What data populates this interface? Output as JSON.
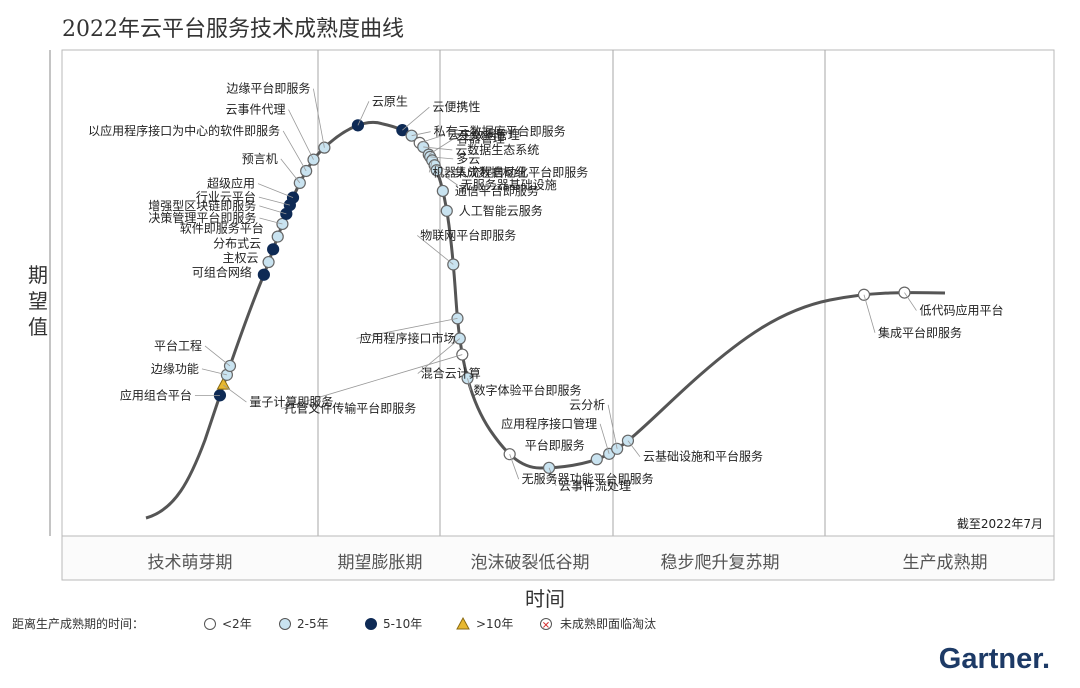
{
  "chart_data": {
    "type": "scatter",
    "title": "2022年云平台服务技术成熟度曲线",
    "ylabel": "期望值",
    "xlabel": "时间",
    "as_of": "截至2022年7月",
    "phases": [
      "技术萌芽期",
      "期望膨胀期",
      "泡沫破裂低谷期",
      "稳步爬升复苏期",
      "生产成熟期"
    ],
    "legend": {
      "title": "距离生产成熟期的时间：",
      "items": [
        {
          "key": "lt2",
          "label": "<2年",
          "color": "#ffffff"
        },
        {
          "key": "2to5",
          "label": "2-5年",
          "color": "#c9e3f0"
        },
        {
          "key": "5to10",
          "label": "5-10年",
          "color": "#0e2a55"
        },
        {
          "key": "gt10",
          "label": ">10年",
          "color": "#e8b830"
        },
        {
          "key": "obsolete",
          "label": "未成熟即面临淘汰",
          "color": "#ffffff"
        }
      ]
    },
    "points": [
      {
        "label": "应用组合平台",
        "t": 0.11,
        "cat": "5to10"
      },
      {
        "label": "量子计算即服务",
        "t": 0.118,
        "cat": "gt10"
      },
      {
        "label": "边缘功能",
        "t": 0.126,
        "cat": "2to5"
      },
      {
        "label": "平台工程",
        "t": 0.133,
        "cat": "2to5"
      },
      {
        "label": "可组合网络",
        "t": 0.205,
        "cat": "5to10"
      },
      {
        "label": "主权云",
        "t": 0.215,
        "cat": "2to5"
      },
      {
        "label": "分布式云",
        "t": 0.225,
        "cat": "5to10"
      },
      {
        "label": "软件即服务平台",
        "t": 0.235,
        "cat": "2to5"
      },
      {
        "label": "决策管理平台即服务",
        "t": 0.245,
        "cat": "2to5"
      },
      {
        "label": "增强型区块链即服务",
        "t": 0.253,
        "cat": "5to10"
      },
      {
        "label": "行业云平台",
        "t": 0.26,
        "cat": "5to10"
      },
      {
        "label": "超级应用",
        "t": 0.266,
        "cat": "5to10"
      },
      {
        "label": "预言机",
        "t": 0.278,
        "cat": "2to5"
      },
      {
        "label": "以应用程序接口为中心的软件即服务",
        "t": 0.288,
        "cat": "2to5"
      },
      {
        "label": "云事件代理",
        "t": 0.298,
        "cat": "2to5"
      },
      {
        "label": "边缘平台即服务",
        "t": 0.31,
        "cat": "2to5"
      },
      {
        "label": "云原生",
        "t": 0.34,
        "cat": "5to10"
      },
      {
        "label": "云便携性",
        "t": 0.374,
        "cat": "5to10"
      },
      {
        "label": "私有云数据库平台即服务",
        "t": 0.382,
        "cat": "2to5"
      },
      {
        "label": "云主数据管理",
        "t": 0.39,
        "cat": "lt2"
      },
      {
        "label": "云数据生态系统",
        "t": 0.394,
        "cat": "2to5"
      },
      {
        "label": "容器管理",
        "t": 0.401,
        "cat": "2to5"
      },
      {
        "label": "多云",
        "t": 0.403,
        "cat": "2to5"
      },
      {
        "label": "机器人流程自动化平台即服务",
        "t": 0.406,
        "cat": "2to5"
      },
      {
        "label": "集成数据枢纽",
        "t": 0.41,
        "cat": "2to5"
      },
      {
        "label": "无服务器基础设施",
        "t": 0.414,
        "cat": "2to5"
      },
      {
        "label": "通信平台即服务",
        "t": 0.43,
        "cat": "2to5"
      },
      {
        "label": "人工智能云服务",
        "t": 0.445,
        "cat": "2to5"
      },
      {
        "label": "物联网平台即服务",
        "t": 0.485,
        "cat": "2to5"
      },
      {
        "label": "应用程序接口市场",
        "t": 0.525,
        "cat": "2to5"
      },
      {
        "label": "混合云计算",
        "t": 0.54,
        "cat": "2to5"
      },
      {
        "label": "托管文件传输平台即服务",
        "t": 0.552,
        "cat": "lt2"
      },
      {
        "label": "数字体验平台即服务",
        "t": 0.57,
        "cat": "2to5"
      },
      {
        "label": "无服务器功能平台即服务",
        "t": 0.635,
        "cat": "lt2"
      },
      {
        "label": "云事件流处理",
        "t": 0.667,
        "cat": "2to5"
      },
      {
        "label": "平台即服务",
        "t": 0.703,
        "cat": "2to5"
      },
      {
        "label": "应用程序接口管理",
        "t": 0.713,
        "cat": "2to5"
      },
      {
        "label": "云分析",
        "t": 0.72,
        "cat": "2to5"
      },
      {
        "label": "云基础设施和平台服务",
        "t": 0.73,
        "cat": "2to5"
      },
      {
        "label": "集成平台即服务",
        "t": 0.94,
        "cat": "lt2"
      },
      {
        "label": "低代码应用平台",
        "t": 0.97,
        "cat": "lt2"
      }
    ]
  },
  "brand": "Gartner."
}
